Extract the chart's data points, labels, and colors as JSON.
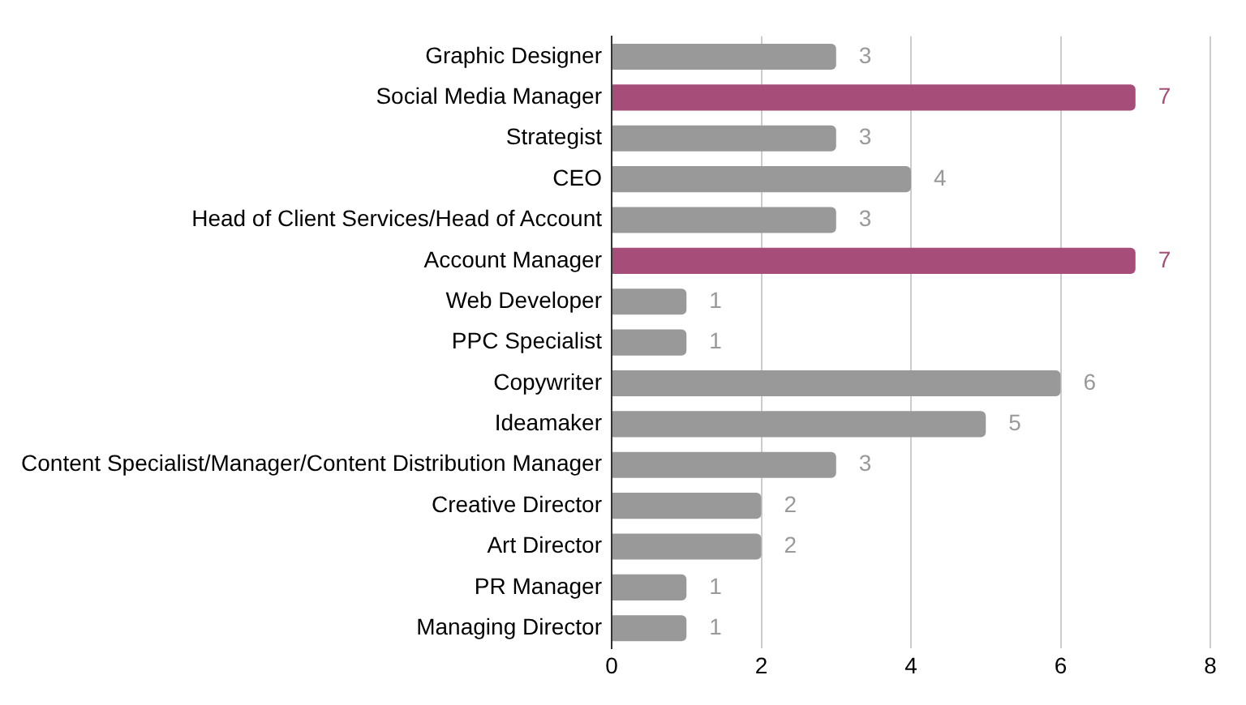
{
  "chart_data": {
    "type": "bar",
    "orientation": "horizontal",
    "categories": [
      "Graphic Designer",
      "Social Media Manager",
      "Strategist",
      "CEO",
      "Head of Client Services/Head of Account",
      "Account Manager",
      "Web Developer",
      "PPC Specialist",
      "Copywriter",
      "Ideamaker",
      "Content Specialist/Manager/Content Distribution Manager",
      "Creative Director",
      "Art Director",
      "PR Manager",
      "Managing Director"
    ],
    "values": [
      3,
      7,
      3,
      4,
      3,
      7,
      1,
      1,
      6,
      5,
      3,
      2,
      2,
      1,
      1
    ],
    "colors": [
      "#999999",
      "#a64d79",
      "#999999",
      "#999999",
      "#999999",
      "#a64d79",
      "#999999",
      "#999999",
      "#999999",
      "#999999",
      "#999999",
      "#999999",
      "#999999",
      "#999999",
      "#999999"
    ],
    "xlim": [
      0,
      8
    ],
    "xticks": [
      0,
      2,
      4,
      6,
      8
    ],
    "grid": "x",
    "data_labels": true
  }
}
